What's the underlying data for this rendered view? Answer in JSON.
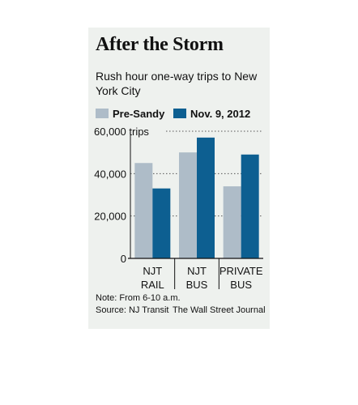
{
  "title": "After the Storm",
  "subtitle": "Rush hour one-way trips to New York City",
  "note": "Note: From 6-10 a.m.",
  "source": "Source: NJ Transit",
  "credit": "The Wall Street Journal",
  "colors": {
    "background": "#eef1ee",
    "pre_sandy": "#aebcc8",
    "nov9": "#0d5f91",
    "gridline": "#555555"
  },
  "chart_data": {
    "type": "bar",
    "title": "After the Storm",
    "subtitle": "Rush hour one-way trips to New York City",
    "unit": "trips",
    "categories": [
      [
        "NJT",
        "RAIL"
      ],
      [
        "NJT",
        "BUS"
      ],
      [
        "PRIVATE",
        "BUS"
      ]
    ],
    "series": [
      {
        "name": "Pre-Sandy",
        "color": "#aebcc8",
        "values": [
          45000,
          50000,
          34000
        ]
      },
      {
        "name": "Nov. 9, 2012",
        "color": "#0d5f91",
        "values": [
          33000,
          57000,
          49000
        ]
      }
    ],
    "ylim": [
      0,
      60000
    ],
    "yticks": [
      0,
      20000,
      40000,
      60000
    ],
    "ytick_labels": [
      "0",
      "20,000",
      "40,000",
      "60,000 trips"
    ],
    "grid": "horizontal dotted",
    "legend": "top-left"
  }
}
